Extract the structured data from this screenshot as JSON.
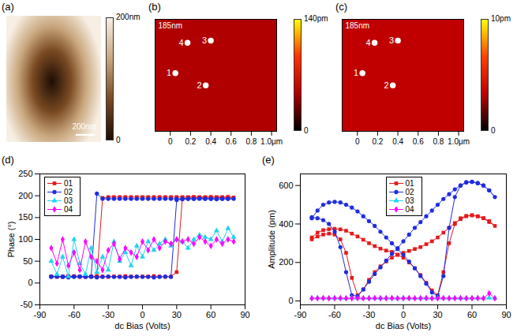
{
  "chart_data": [
    {
      "type": "image",
      "title": "(a)",
      "xlim": [
        0,
        1000
      ],
      "tick_labels": false,
      "scale_bar": {
        "length": 200,
        "label": "200nm"
      },
      "colorbar": {
        "range": [
          0,
          200
        ],
        "ticks": [
          0,
          {
            "value": 200,
            "label": "200nm"
          }
        ],
        "colors": [
          "#1e0d04",
          "#7a4a22",
          "#c9a77e",
          "#f7efe4"
        ]
      }
    },
    {
      "type": "surface",
      "title": "(b)",
      "annotations": [
        "185nm"
      ],
      "xlim": [
        -0.15,
        1.05
      ],
      "xticks": [
        0,
        0.2,
        0.4,
        0.6,
        0.8,
        {
          "value": 1.0,
          "label": "1.0μm"
        }
      ],
      "ylim": [
        0,
        1.0
      ],
      "tick_labels": "x",
      "points": [
        {
          "label": "1",
          "x": 0.05,
          "y": 0.52
        },
        {
          "label": "2",
          "x": 0.35,
          "y": 0.41
        },
        {
          "label": "3",
          "x": 0.4,
          "y": 0.81
        },
        {
          "label": "4",
          "x": 0.17,
          "y": 0.79
        }
      ],
      "colorbar": {
        "range": [
          0,
          140
        ],
        "ticks": [
          0,
          {
            "value": 140,
            "label": "140pm"
          }
        ],
        "colors": [
          "#000000",
          "#b00000",
          "#ff3000",
          "#ffff00"
        ]
      }
    },
    {
      "type": "surface",
      "title": "(c)",
      "annotations": [
        "185nm"
      ],
      "xlim": [
        -0.15,
        1.05
      ],
      "xticks": [
        0,
        0.2,
        0.4,
        0.6,
        0.8,
        {
          "value": 1.0,
          "label": "1.0μm"
        }
      ],
      "ylim": [
        0,
        1.0
      ],
      "tick_labels": "x",
      "points": [
        {
          "label": "1",
          "x": 0.05,
          "y": 0.52
        },
        {
          "label": "2",
          "x": 0.35,
          "y": 0.41
        },
        {
          "label": "3",
          "x": 0.4,
          "y": 0.81
        },
        {
          "label": "4",
          "x": 0.17,
          "y": 0.79
        }
      ],
      "colorbar": {
        "range": [
          0,
          10
        ],
        "ticks": [
          0,
          {
            "value": 10,
            "label": "10pm"
          }
        ],
        "colors": [
          "#000000",
          "#c00000",
          "#ff4000",
          "#ffff00"
        ]
      }
    },
    {
      "type": "line",
      "title": "(d)",
      "x_label": "dc Bias (Volts)",
      "y_label": "Phase (°)",
      "xlim": [
        -90,
        90
      ],
      "xticks": [
        -90,
        -60,
        -30,
        0,
        30,
        60,
        90
      ],
      "ylim": [
        -50,
        250
      ],
      "yticks": [
        -50,
        0,
        50,
        100,
        150,
        200,
        250
      ],
      "legend": "upper left",
      "series": [
        {
          "name": "01",
          "color": "#e41a1c",
          "marker": "square",
          "x": [
            -80,
            -75,
            -70,
            -65,
            -60,
            -55,
            -50,
            -45,
            -40,
            -35,
            -30,
            -25,
            -20,
            -15,
            -10,
            -5,
            0,
            5,
            10,
            15,
            20,
            25,
            30,
            35,
            40,
            45,
            50,
            55,
            60,
            65,
            70,
            75,
            80,
            75,
            70,
            65,
            60,
            55,
            50,
            45,
            40,
            35,
            30,
            25,
            20,
            15,
            10,
            5,
            0,
            -5,
            -10,
            -15,
            -20,
            -25,
            -30,
            -35,
            -40,
            -45,
            -50,
            -55,
            -60,
            -65,
            -70,
            -75,
            -80
          ],
          "values": [
            15,
            14,
            15,
            16,
            15,
            14,
            15,
            15,
            16,
            15,
            14,
            15,
            15,
            16,
            15,
            14,
            15,
            15,
            16,
            15,
            14,
            15,
            25,
            193,
            196,
            197,
            196,
            196,
            197,
            196,
            196,
            197,
            196,
            197,
            197,
            197,
            197,
            197,
            197,
            197,
            197,
            197,
            197,
            197,
            197,
            197,
            197,
            197,
            197,
            197,
            197,
            197,
            197,
            197,
            197,
            195,
            15,
            15,
            14,
            15,
            16,
            15,
            14,
            15,
            15
          ]
        },
        {
          "name": "02",
          "color": "#1f2de0",
          "marker": "circle",
          "x": [
            -80,
            -75,
            -70,
            -65,
            -60,
            -55,
            -50,
            -45,
            -40,
            -35,
            -30,
            -25,
            -20,
            -15,
            -10,
            -5,
            0,
            5,
            10,
            15,
            20,
            25,
            30,
            35,
            40,
            45,
            50,
            55,
            60,
            65,
            70,
            75,
            80,
            75,
            70,
            65,
            60,
            55,
            50,
            45,
            40,
            35,
            30,
            25,
            20,
            15,
            10,
            5,
            0,
            -5,
            -10,
            -15,
            -20,
            -25,
            -30,
            -35,
            -40,
            -45,
            -50,
            -55,
            -60,
            -65,
            -70,
            -75,
            -80
          ],
          "values": [
            14,
            15,
            14,
            13,
            14,
            15,
            14,
            14,
            13,
            14,
            15,
            14,
            14,
            13,
            14,
            15,
            14,
            14,
            13,
            14,
            15,
            14,
            190,
            192,
            193,
            193,
            194,
            193,
            193,
            192,
            193,
            193,
            193,
            193,
            193,
            193,
            193,
            193,
            193,
            193,
            193,
            193,
            193,
            193,
            193,
            193,
            193,
            193,
            193,
            193,
            193,
            193,
            193,
            193,
            193,
            193,
            205,
            15,
            15,
            15,
            15,
            15,
            15,
            15,
            15
          ]
        },
        {
          "name": "03",
          "color": "#22d3f0",
          "marker": "triangle",
          "x": [
            -80,
            -75,
            -70,
            -65,
            -60,
            -55,
            -50,
            -45,
            -40,
            -35,
            -30,
            -25,
            -20,
            -15,
            -10,
            -5,
            0,
            5,
            10,
            15,
            20,
            25,
            30,
            35,
            40,
            45,
            50,
            55,
            60,
            65,
            70,
            75,
            80
          ],
          "values": [
            50,
            20,
            60,
            15,
            100,
            45,
            20,
            80,
            25,
            60,
            30,
            95,
            50,
            70,
            40,
            85,
            60,
            95,
            75,
            90,
            100,
            85,
            100,
            95,
            80,
            100,
            110,
            105,
            100,
            120,
            95,
            125,
            105
          ]
        },
        {
          "name": "04",
          "color": "#ff00ff",
          "marker": "diamond",
          "x": [
            -80,
            -75,
            -70,
            -65,
            -60,
            -55,
            -50,
            -45,
            -40,
            -35,
            -30,
            -25,
            -20,
            -15,
            -10,
            -5,
            0,
            5,
            10,
            15,
            20,
            25,
            30,
            35,
            40,
            45,
            50,
            55,
            60,
            65,
            70,
            75,
            80
          ],
          "values": [
            80,
            45,
            100,
            40,
            70,
            30,
            95,
            60,
            50,
            30,
            75,
            90,
            55,
            80,
            70,
            60,
            95,
            75,
            100,
            80,
            95,
            90,
            100,
            95,
            100,
            90,
            105,
            95,
            85,
            100,
            90,
            100,
            95
          ]
        }
      ]
    },
    {
      "type": "line",
      "title": "(e)",
      "x_label": "dc Bias (Volts)",
      "y_label": "Amplitude (pm)",
      "xlim": [
        -90,
        90
      ],
      "xticks": [
        -90,
        -60,
        -30,
        0,
        30,
        60,
        90
      ],
      "ylim": [
        -20,
        660
      ],
      "yticks": [
        0,
        200,
        400,
        600
      ],
      "legend": "upper center",
      "series": [
        {
          "name": "01",
          "color": "#e41a1c",
          "marker": "square",
          "x": [
            -80,
            -75,
            -70,
            -65,
            -60,
            -55,
            -50,
            -45,
            -40,
            -35,
            -30,
            -25,
            -20,
            -15,
            -10,
            -5,
            0,
            5,
            10,
            15,
            20,
            25,
            30,
            35,
            40,
            45,
            50,
            55,
            60,
            65,
            70,
            75,
            80,
            75,
            70,
            65,
            60,
            55,
            50,
            45,
            40,
            35,
            30,
            25,
            20,
            15,
            10,
            5,
            0,
            -5,
            -10,
            -15,
            -20,
            -25,
            -30,
            -35,
            -40,
            -45,
            -50,
            -55,
            -60,
            -65,
            -70,
            -75,
            -80
          ],
          "values": [
            330,
            355,
            368,
            373,
            375,
            372,
            365,
            350,
            335,
            318,
            300,
            285,
            272,
            262,
            255,
            240,
            225,
            200,
            170,
            135,
            95,
            55,
            30,
            150,
            300,
            400,
            430,
            442,
            445,
            440,
            430,
            410,
            390,
            415,
            430,
            440,
            445,
            440,
            425,
            405,
            380,
            355,
            330,
            310,
            295,
            280,
            270,
            260,
            250,
            240,
            225,
            205,
            180,
            150,
            110,
            60,
            30,
            120,
            250,
            320,
            345,
            350,
            345,
            335,
            320
          ]
        },
        {
          "name": "02",
          "color": "#1f2de0",
          "marker": "circle",
          "x": [
            -80,
            -75,
            -70,
            -65,
            -60,
            -55,
            -50,
            -45,
            -40,
            -35,
            -30,
            -25,
            -20,
            -15,
            -10,
            -5,
            0,
            5,
            10,
            15,
            20,
            25,
            30,
            35,
            40,
            45,
            50,
            55,
            60,
            65,
            70,
            75,
            80,
            75,
            70,
            65,
            60,
            55,
            50,
            45,
            40,
            35,
            30,
            25,
            20,
            15,
            10,
            5,
            0,
            -5,
            -10,
            -15,
            -20,
            -25,
            -30,
            -35,
            -40,
            -45,
            -50,
            -55,
            -60,
            -65,
            -70,
            -75,
            -80
          ],
          "values": [
            430,
            470,
            500,
            512,
            515,
            512,
            500,
            485,
            465,
            440,
            415,
            390,
            360,
            330,
            300,
            270,
            240,
            205,
            170,
            130,
            90,
            45,
            25,
            130,
            380,
            540,
            600,
            618,
            620,
            612,
            600,
            575,
            540,
            575,
            600,
            612,
            618,
            615,
            600,
            580,
            555,
            530,
            500,
            470,
            440,
            410,
            380,
            345,
            310,
            275,
            245,
            210,
            175,
            140,
            100,
            60,
            25,
            30,
            150,
            280,
            360,
            400,
            420,
            430,
            435
          ]
        },
        {
          "name": "03",
          "color": "#22d3f0",
          "marker": "triangle",
          "x": [
            -80,
            -75,
            -70,
            -65,
            -60,
            -55,
            -50,
            -45,
            -40,
            -35,
            -30,
            -25,
            -20,
            -15,
            -10,
            -5,
            0,
            5,
            10,
            15,
            20,
            25,
            30,
            35,
            40,
            45,
            50,
            55,
            60,
            65,
            70,
            75,
            80
          ],
          "values": [
            15,
            16,
            15,
            15,
            16,
            15,
            15,
            16,
            15,
            15,
            16,
            15,
            15,
            16,
            15,
            15,
            16,
            15,
            15,
            16,
            15,
            15,
            16,
            15,
            15,
            16,
            15,
            15,
            16,
            15,
            15,
            16,
            15
          ]
        },
        {
          "name": "04",
          "color": "#ff00ff",
          "marker": "diamond",
          "x": [
            -80,
            -75,
            -70,
            -65,
            -60,
            -55,
            -50,
            -45,
            -40,
            -35,
            -30,
            -25,
            -20,
            -15,
            -10,
            -5,
            0,
            5,
            10,
            15,
            20,
            25,
            30,
            35,
            40,
            45,
            50,
            55,
            60,
            65,
            70,
            75,
            80
          ],
          "values": [
            14,
            14,
            15,
            14,
            14,
            15,
            14,
            14,
            15,
            14,
            14,
            15,
            14,
            14,
            15,
            14,
            14,
            15,
            14,
            14,
            15,
            14,
            14,
            15,
            14,
            14,
            15,
            14,
            14,
            15,
            14,
            40,
            14
          ]
        }
      ]
    }
  ]
}
